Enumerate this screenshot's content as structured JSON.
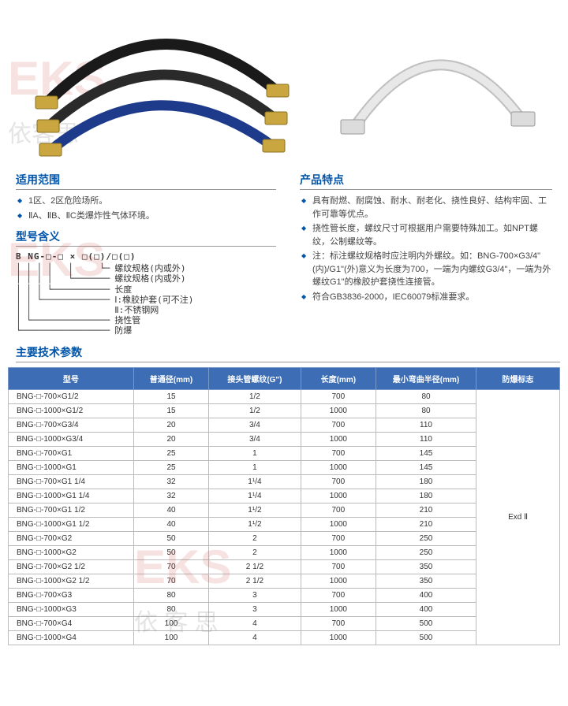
{
  "watermarks": {
    "top": "EKS",
    "top_sub": "依客思",
    "mid": "EKS",
    "mid_sub": "依 客 思"
  },
  "sections": {
    "scope_title": "适用范围",
    "scope_items": [
      "1区、2区危险场所。",
      "ⅡA、ⅡB、ⅡC类爆炸性气体环境。"
    ],
    "features_title": "产品特点",
    "features_items": [
      "具有耐燃、耐腐蚀、耐水、耐老化、挠性良好、结构牢固、工作可靠等优点。",
      "挠性管长度，螺纹尺寸可根据用户需要特殊加工。如NPT螺纹，公制螺纹等。",
      "注：标注螺纹规格时应注明内外螺纹。如：BNG-700×G3/4\"(内)/G1\"(外)意义为长度为700，一端为内螺纹G3/4\"，一端为外螺纹G1\"的橡胶护套挠性连接管。",
      "符合GB3836-2000，IEC60079标准要求。"
    ],
    "model_title": "型号含义",
    "model_code": "B NG-□-□ × □(□)/□(□)",
    "model_labels": [
      "螺纹规格(内或外)",
      "螺纹规格(内或外)",
      "长度",
      "Ⅰ:橡胶护套(可不注)",
      "Ⅱ:不锈钢网",
      "挠性管",
      "防爆"
    ],
    "params_title": "主要技术参数"
  },
  "table": {
    "headers": [
      "型号",
      "普通径(mm)",
      "接头管螺纹(G\")",
      "长度(mm)",
      "最小弯曲半径(mm)",
      "防爆标志"
    ],
    "mark": "Exd Ⅱ",
    "rows": [
      {
        "model": "BNG-□-700×G1/2",
        "d": "15",
        "t": "1/2",
        "l": "700",
        "r": "80"
      },
      {
        "model": "BNG-□-1000×G1/2",
        "d": "15",
        "t": "1/2",
        "l": "1000",
        "r": "80"
      },
      {
        "model": "BNG-□-700×G3/4",
        "d": "20",
        "t": "3/4",
        "l": "700",
        "r": "110"
      },
      {
        "model": "BNG-□-1000×G3/4",
        "d": "20",
        "t": "3/4",
        "l": "1000",
        "r": "110"
      },
      {
        "model": "BNG-□-700×G1",
        "d": "25",
        "t": "1",
        "l": "700",
        "r": "145"
      },
      {
        "model": "BNG-□-1000×G1",
        "d": "25",
        "t": "1",
        "l": "1000",
        "r": "145"
      },
      {
        "model": "BNG-□-700×G1 1/4",
        "d": "32",
        "t": "1¹/4",
        "l": "700",
        "r": "180"
      },
      {
        "model": "BNG-□-1000×G1 1/4",
        "d": "32",
        "t": "1¹/4",
        "l": "1000",
        "r": "180"
      },
      {
        "model": "BNG-□-700×G1 1/2",
        "d": "40",
        "t": "1¹/2",
        "l": "700",
        "r": "210"
      },
      {
        "model": "BNG-□-1000×G1 1/2",
        "d": "40",
        "t": "1¹/2",
        "l": "1000",
        "r": "210"
      },
      {
        "model": "BNG-□-700×G2",
        "d": "50",
        "t": "2",
        "l": "700",
        "r": "250"
      },
      {
        "model": "BNG-□-1000×G2",
        "d": "50",
        "t": "2",
        "l": "1000",
        "r": "250"
      },
      {
        "model": "BNG-□-700×G2 1/2",
        "d": "70",
        "t": "2 1/2",
        "l": "700",
        "r": "350"
      },
      {
        "model": "BNG-□-1000×G2 1/2",
        "d": "70",
        "t": "2 1/2",
        "l": "1000",
        "r": "350"
      },
      {
        "model": "BNG-□-700×G3",
        "d": "80",
        "t": "3",
        "l": "700",
        "r": "400"
      },
      {
        "model": "BNG-□-1000×G3",
        "d": "80",
        "t": "3",
        "l": "1000",
        "r": "400"
      },
      {
        "model": "BNG-□-700×G4",
        "d": "100",
        "t": "4",
        "l": "700",
        "r": "500"
      },
      {
        "model": "BNG-□-1000×G4",
        "d": "100",
        "t": "4",
        "l": "1000",
        "r": "500"
      }
    ]
  },
  "colors": {
    "accent": "#0055aa",
    "th_bg": "#3d6db5",
    "hose1": "#1a1a1a",
    "hose2": "#2a2a2a",
    "hose3": "#1e3a8a",
    "hose_steel": "#c0c0c0",
    "brass": "#c9a63f"
  }
}
